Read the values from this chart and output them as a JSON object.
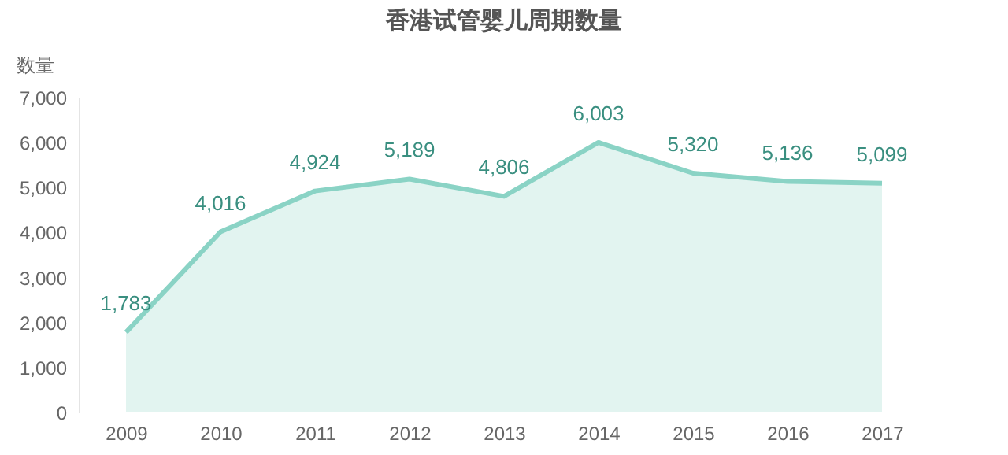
{
  "chart_data": {
    "type": "area",
    "title": "香港试管婴儿周期数量",
    "ylabel": "数量",
    "categories": [
      "2009",
      "2010",
      "2011",
      "2012",
      "2013",
      "2014",
      "2015",
      "2016",
      "2017"
    ],
    "values": [
      1783,
      4016,
      4924,
      5189,
      4806,
      6003,
      5320,
      5136,
      5099
    ],
    "color": "#8ad3c5",
    "ylim": [
      0,
      7000
    ],
    "yticks": [
      0,
      {
        "value": 1000,
        "label": "1,000"
      },
      {
        "value": 2000,
        "label": "2,000"
      },
      {
        "value": 3000,
        "label": "3,000"
      },
      {
        "value": 4000,
        "label": "4,000"
      },
      {
        "value": 5000,
        "label": "5,000"
      },
      {
        "value": 6000,
        "label": "6,000"
      },
      {
        "value": 7000,
        "label": "7,000"
      }
    ],
    "value_labels": [
      "1,783",
      "4,016",
      "4,924",
      "5,189",
      "4,806",
      "6,003",
      "5,320",
      "5,136",
      "5,099"
    ],
    "grid": false
  }
}
